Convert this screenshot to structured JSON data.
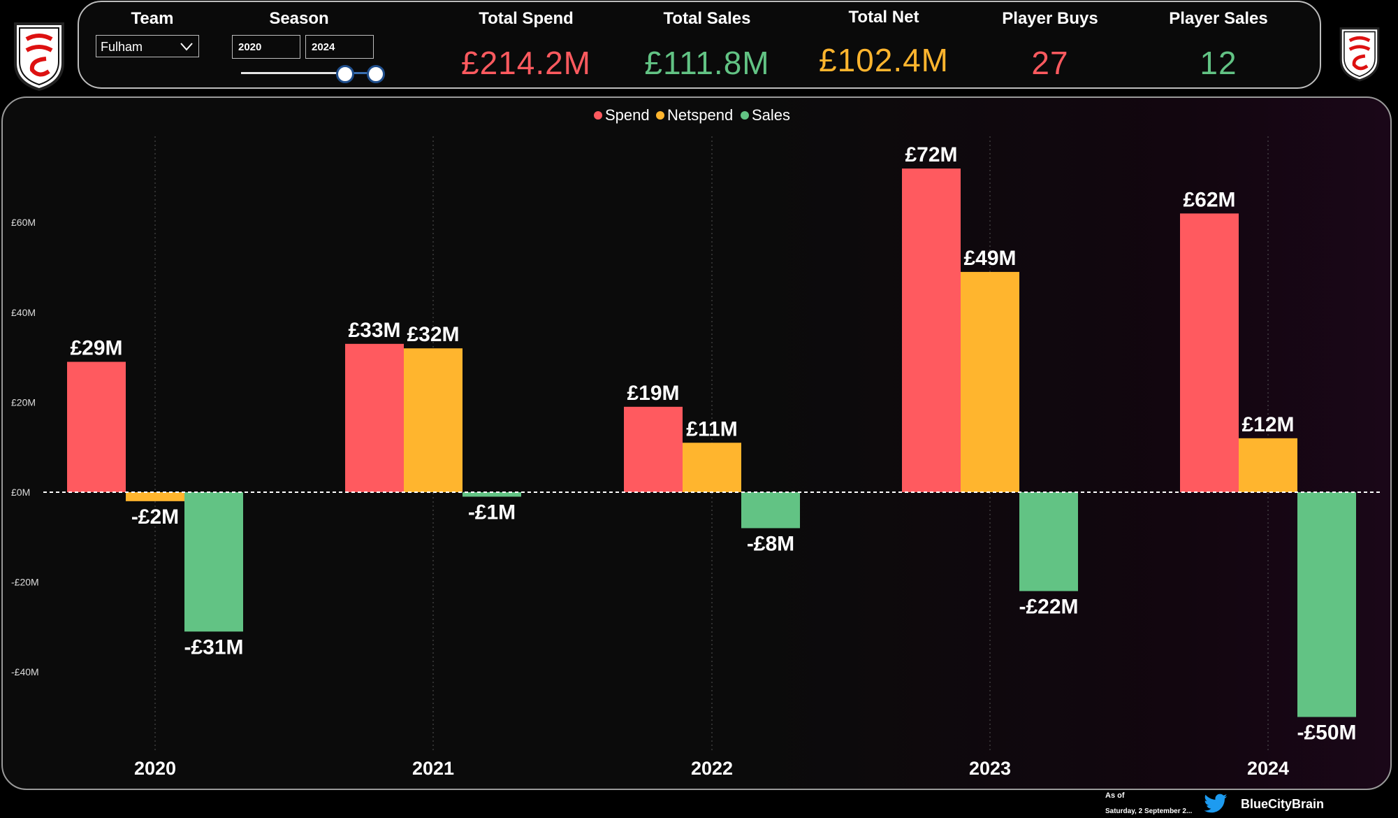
{
  "header": {
    "team_label": "Team",
    "team_value": "Fulham",
    "season_label": "Season",
    "season_start": "2020",
    "season_end": "2024"
  },
  "kpis": {
    "total_spend": {
      "label": "Total Spend",
      "value": "£214.2M"
    },
    "total_sales": {
      "label": "Total Sales",
      "value": "£111.8M"
    },
    "total_net": {
      "label": "Total Net",
      "value": "£102.4M"
    },
    "player_buys": {
      "label": "Player Buys",
      "value": "27"
    },
    "player_sales": {
      "label": "Player Sales",
      "value": "12"
    }
  },
  "colors": {
    "spend": "#ff5a5f",
    "netspend": "#ffb52e",
    "sales": "#62c384"
  },
  "icons": {
    "logo": "fulham-crest-icon",
    "twitter": "twitter-bird-icon",
    "dropdown": "chevron-down-icon"
  },
  "chart_data": {
    "type": "bar",
    "categories": [
      "2020",
      "2021",
      "2022",
      "2023",
      "2024"
    ],
    "series": [
      {
        "name": "Spend",
        "color": "#ff5a5f",
        "values": [
          29,
          33,
          19,
          72,
          62
        ],
        "labels": [
          "£29M",
          "£33M",
          "£19M",
          "£72M",
          "£62M"
        ]
      },
      {
        "name": "Netspend",
        "color": "#ffb52e",
        "values": [
          -2,
          32,
          11,
          49,
          12
        ],
        "labels": [
          "-£2M",
          "£32M",
          "£11M",
          "£49M",
          "£12M"
        ]
      },
      {
        "name": "Sales",
        "color": "#62c384",
        "values": [
          -31,
          -1,
          -8,
          -22,
          -50
        ],
        "labels": [
          "-£31M",
          "-£1M",
          "-£8M",
          "-£22M",
          "-£50M"
        ]
      }
    ],
    "yticks": [
      60,
      40,
      20,
      0,
      -20,
      -40
    ],
    "ytick_labels": [
      "£60M",
      "£40M",
      "£20M",
      "£0M",
      "-£20M",
      "-£40M"
    ],
    "ylim": [
      -60,
      80
    ],
    "legend_position": "top-center",
    "grid": "vertical-dotted"
  },
  "footer": {
    "as_of": "As of",
    "date": "Saturday, 2 September 2...",
    "handle": "BlueCityBrain"
  }
}
